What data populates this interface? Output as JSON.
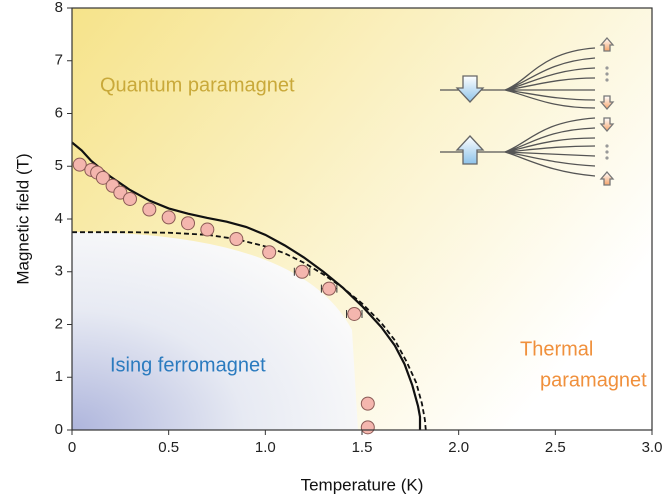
{
  "chart_data": {
    "type": "scatter",
    "xlabel": "Temperature (K)",
    "ylabel": "Magnetic  field (T)",
    "xlim": [
      0,
      3
    ],
    "ylim": [
      0,
      8
    ],
    "xticks": [
      0,
      0.5,
      {
        "value": 1,
        "label": "1.0"
      },
      1.5,
      {
        "value": 2,
        "label": "2.0"
      },
      2.5,
      {
        "value": 3,
        "label": "3.0"
      }
    ],
    "yticks": [
      0,
      1,
      2,
      3,
      4,
      5,
      6,
      7,
      8
    ],
    "series": [
      {
        "kind": "line",
        "style": "dashed",
        "color": "#111111",
        "x": [
          0,
          0.3,
          0.5,
          0.7,
          0.85,
          1.0,
          1.1,
          1.2,
          1.3,
          1.4,
          1.5,
          1.6,
          1.67,
          1.73,
          1.78,
          1.81,
          1.825,
          1.83
        ],
        "values": [
          3.75,
          3.75,
          3.74,
          3.7,
          3.62,
          3.48,
          3.35,
          3.17,
          2.95,
          2.7,
          2.4,
          2.03,
          1.7,
          1.3,
          0.9,
          0.5,
          0.2,
          0
        ]
      },
      {
        "kind": "line",
        "style": "solid",
        "color": "#111111",
        "x": [
          0,
          0.05,
          0.1,
          0.2,
          0.3,
          0.4,
          0.5,
          0.6,
          0.7,
          0.8,
          0.9,
          1.0,
          1.1,
          1.2,
          1.3,
          1.4,
          1.5,
          1.6,
          1.67,
          1.72,
          1.76,
          1.79,
          1.8,
          1.8
        ],
        "values": [
          5.45,
          5.3,
          5.1,
          4.8,
          4.55,
          4.35,
          4.2,
          4.1,
          4.02,
          3.95,
          3.85,
          3.7,
          3.5,
          3.27,
          3.0,
          2.7,
          2.35,
          1.95,
          1.6,
          1.25,
          0.85,
          0.45,
          0.25,
          0
        ]
      },
      {
        "kind": "points",
        "color": "#f4b6ae",
        "x": [
          0.04,
          0.1,
          0.13,
          0.16,
          0.21,
          0.25,
          0.3,
          0.4,
          0.5,
          0.6,
          0.7,
          0.85,
          1.02,
          1.19,
          1.33,
          1.46,
          1.53,
          1.53
        ],
        "values": [
          5.03,
          4.93,
          4.88,
          4.78,
          4.63,
          4.5,
          4.38,
          4.18,
          4.03,
          3.92,
          3.8,
          3.62,
          3.37,
          3.0,
          2.68,
          2.2,
          0.5,
          0.05
        ],
        "x_errors": [
          null,
          null,
          null,
          null,
          null,
          null,
          null,
          null,
          null,
          null,
          null,
          null,
          null,
          0.04,
          0.04,
          0.04,
          null,
          null
        ]
      }
    ],
    "annotations": [
      {
        "text": "Quantum paramagnet",
        "color": "#c9a93a"
      },
      {
        "text": "Ising ferromagnet",
        "color": "#2b7bbf"
      },
      {
        "text": "Thermal",
        "color": "#f0903c"
      },
      {
        "text": "paramagnet",
        "color": "#f0903c"
      }
    ]
  }
}
